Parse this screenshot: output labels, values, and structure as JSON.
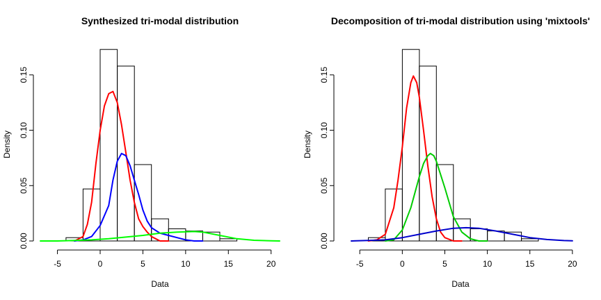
{
  "chart_data": [
    {
      "type": "histogram",
      "title": "Synthesized tri-modal distribution",
      "xlabel": "Data",
      "ylabel": "Density",
      "xlim": [
        -7,
        21
      ],
      "ylim": [
        0,
        0.18
      ],
      "x_ticks": [
        -5,
        0,
        5,
        10,
        15,
        20
      ],
      "y_ticks": [
        0.0,
        0.05,
        0.1,
        0.15
      ],
      "x_tick_labels": [
        "-5",
        "0",
        "5",
        "10",
        "15",
        "20"
      ],
      "y_tick_labels": [
        "0.00",
        "0.05",
        "0.10",
        "0.15"
      ],
      "bins": [
        {
          "x0": -4,
          "x1": -2,
          "density": 0.003
        },
        {
          "x0": -2,
          "x1": 0,
          "density": 0.047
        },
        {
          "x0": 0,
          "x1": 2,
          "density": 0.173
        },
        {
          "x0": 2,
          "x1": 4,
          "density": 0.158
        },
        {
          "x0": 4,
          "x1": 6,
          "density": 0.069
        },
        {
          "x0": 6,
          "x1": 8,
          "density": 0.02
        },
        {
          "x0": 8,
          "x1": 10,
          "density": 0.011
        },
        {
          "x0": 10,
          "x1": 12,
          "density": 0.009
        },
        {
          "x0": 12,
          "x1": 14,
          "density": 0.008
        },
        {
          "x0": 14,
          "x1": 16,
          "density": 0.002
        }
      ],
      "series": [
        {
          "color": "#ff0000",
          "points": [
            [
              -3,
              0
            ],
            [
              -2,
              0.004
            ],
            [
              -1.5,
              0.015
            ],
            [
              -1,
              0.035
            ],
            [
              -0.5,
              0.07
            ],
            [
              0,
              0.1
            ],
            [
              0.5,
              0.122
            ],
            [
              1,
              0.133
            ],
            [
              1.5,
              0.135
            ],
            [
              2,
              0.125
            ],
            [
              2.5,
              0.105
            ],
            [
              3,
              0.08
            ],
            [
              3.5,
              0.055
            ],
            [
              4,
              0.035
            ],
            [
              4.5,
              0.02
            ],
            [
              5,
              0.013
            ],
            [
              5.5,
              0.008
            ],
            [
              6,
              0.004
            ],
            [
              6.5,
              0.002
            ],
            [
              7,
              0.0
            ],
            [
              8,
              0.0
            ]
          ]
        },
        {
          "color": "#0000ff",
          "points": [
            [
              -3,
              0
            ],
            [
              -2,
              0.001
            ],
            [
              -1,
              0.004
            ],
            [
              0,
              0.014
            ],
            [
              1,
              0.032
            ],
            [
              1.5,
              0.055
            ],
            [
              2,
              0.072
            ],
            [
              2.5,
              0.079
            ],
            [
              3,
              0.077
            ],
            [
              3.5,
              0.068
            ],
            [
              4,
              0.055
            ],
            [
              4.5,
              0.042
            ],
            [
              5,
              0.028
            ],
            [
              5.5,
              0.018
            ],
            [
              6,
              0.012
            ],
            [
              7,
              0.007
            ],
            [
              8,
              0.005
            ],
            [
              9,
              0.003
            ],
            [
              10,
              0.001
            ],
            [
              11,
              0.0
            ],
            [
              12,
              0.0
            ]
          ]
        },
        {
          "color": "#00ff00",
          "points": [
            [
              -7,
              0
            ],
            [
              -5,
              0.0
            ],
            [
              -3,
              0.0005
            ],
            [
              -1,
              0.001
            ],
            [
              1,
              0.002
            ],
            [
              3,
              0.0035
            ],
            [
              5,
              0.005
            ],
            [
              7,
              0.007
            ],
            [
              9,
              0.008
            ],
            [
              11,
              0.0085
            ],
            [
              12,
              0.008
            ],
            [
              14,
              0.005
            ],
            [
              16,
              0.002
            ],
            [
              18,
              0.0006
            ],
            [
              20,
              0.0001
            ],
            [
              21,
              0.0
            ]
          ]
        }
      ]
    },
    {
      "type": "histogram",
      "title": "Decomposition of tri-modal distribution using 'mixtools'",
      "xlabel": "Data",
      "ylabel": "Density",
      "xlim": [
        -6,
        20.5
      ],
      "ylim": [
        0,
        0.18
      ],
      "x_ticks": [
        -5,
        0,
        5,
        10,
        15,
        20
      ],
      "y_ticks": [
        0.0,
        0.05,
        0.1,
        0.15
      ],
      "x_tick_labels": [
        "-5",
        "0",
        "5",
        "10",
        "15",
        "20"
      ],
      "y_tick_labels": [
        "0.00",
        "0.05",
        "0.10",
        "0.15"
      ],
      "bins": [
        {
          "x0": -4,
          "x1": -2,
          "density": 0.003
        },
        {
          "x0": -2,
          "x1": 0,
          "density": 0.047
        },
        {
          "x0": 0,
          "x1": 2,
          "density": 0.173
        },
        {
          "x0": 2,
          "x1": 4,
          "density": 0.158
        },
        {
          "x0": 4,
          "x1": 6,
          "density": 0.069
        },
        {
          "x0": 6,
          "x1": 8,
          "density": 0.02
        },
        {
          "x0": 8,
          "x1": 10,
          "density": 0.011
        },
        {
          "x0": 10,
          "x1": 12,
          "density": 0.009
        },
        {
          "x0": 12,
          "x1": 14,
          "density": 0.008
        },
        {
          "x0": 14,
          "x1": 16,
          "density": 0.002
        }
      ],
      "series": [
        {
          "color": "#ff0000",
          "points": [
            [
              -4,
              0
            ],
            [
              -3,
              0.001
            ],
            [
              -2,
              0.006
            ],
            [
              -1,
              0.03
            ],
            [
              -0.5,
              0.055
            ],
            [
              0,
              0.085
            ],
            [
              0.5,
              0.12
            ],
            [
              1,
              0.143
            ],
            [
              1.3,
              0.149
            ],
            [
              1.7,
              0.143
            ],
            [
              2,
              0.13
            ],
            [
              2.5,
              0.1
            ],
            [
              3,
              0.068
            ],
            [
              3.5,
              0.04
            ],
            [
              4,
              0.02
            ],
            [
              4.5,
              0.008
            ],
            [
              5,
              0.003
            ],
            [
              6,
              0.0
            ],
            [
              7,
              0.0
            ]
          ]
        },
        {
          "color": "#00cc00",
          "points": [
            [
              -2,
              0
            ],
            [
              -1,
              0.001
            ],
            [
              0,
              0.01
            ],
            [
              1,
              0.03
            ],
            [
              2,
              0.058
            ],
            [
              2.5,
              0.07
            ],
            [
              3,
              0.077
            ],
            [
              3.3,
              0.079
            ],
            [
              3.7,
              0.077
            ],
            [
              4,
              0.072
            ],
            [
              5,
              0.048
            ],
            [
              6,
              0.022
            ],
            [
              7,
              0.008
            ],
            [
              8,
              0.002
            ],
            [
              9,
              0.0
            ],
            [
              10,
              0.0
            ]
          ]
        },
        {
          "color": "#0000cc",
          "points": [
            [
              -6,
              0
            ],
            [
              -4,
              0.0005
            ],
            [
              -2,
              0.001
            ],
            [
              0,
              0.003
            ],
            [
              2,
              0.006
            ],
            [
              4,
              0.009
            ],
            [
              6,
              0.0115
            ],
            [
              7.5,
              0.012
            ],
            [
              9,
              0.0115
            ],
            [
              11,
              0.009
            ],
            [
              13,
              0.006
            ],
            [
              15,
              0.003
            ],
            [
              17,
              0.0013
            ],
            [
              19,
              0.0004
            ],
            [
              20,
              0.0001
            ]
          ]
        }
      ]
    }
  ]
}
